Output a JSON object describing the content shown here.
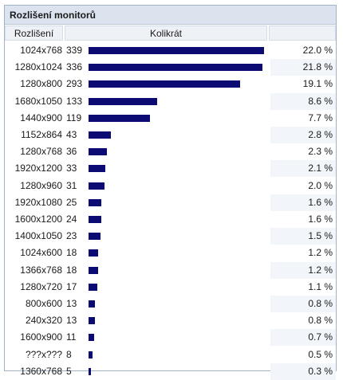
{
  "title": "Rozlišení monitorů",
  "columns": {
    "resolution": "Rozlišení",
    "count": "Kolikrát",
    "percent": ""
  },
  "chart_data": {
    "type": "bar",
    "title": "Rozlišení monitorů",
    "xlabel": "Rozlišení",
    "ylabel": "Kolikrát",
    "categories": [
      "1024x768",
      "1280x1024",
      "1280x800",
      "1680x1050",
      "1440x900",
      "1152x864",
      "1280x768",
      "1920x1200",
      "1280x960",
      "1920x1080",
      "1600x1200",
      "1400x1050",
      "1024x600",
      "1366x768",
      "1280x720",
      "800x600",
      "240x320",
      "1600x900",
      "???x???",
      "1360x768"
    ],
    "values": [
      339,
      336,
      293,
      133,
      119,
      43,
      36,
      33,
      31,
      25,
      24,
      23,
      18,
      18,
      17,
      13,
      13,
      11,
      8,
      5
    ],
    "percents": [
      "22.0 %",
      "21.8 %",
      "19.1 %",
      "8.6 %",
      "7.7 %",
      "2.8 %",
      "2.3 %",
      "2.1 %",
      "2.0 %",
      "1.6 %",
      "1.6 %",
      "1.5 %",
      "1.2 %",
      "1.2 %",
      "1.1 %",
      "0.8 %",
      "0.8 %",
      "0.7 %",
      "0.5 %",
      "0.3 %"
    ],
    "bar_color": "#0b0b73"
  }
}
